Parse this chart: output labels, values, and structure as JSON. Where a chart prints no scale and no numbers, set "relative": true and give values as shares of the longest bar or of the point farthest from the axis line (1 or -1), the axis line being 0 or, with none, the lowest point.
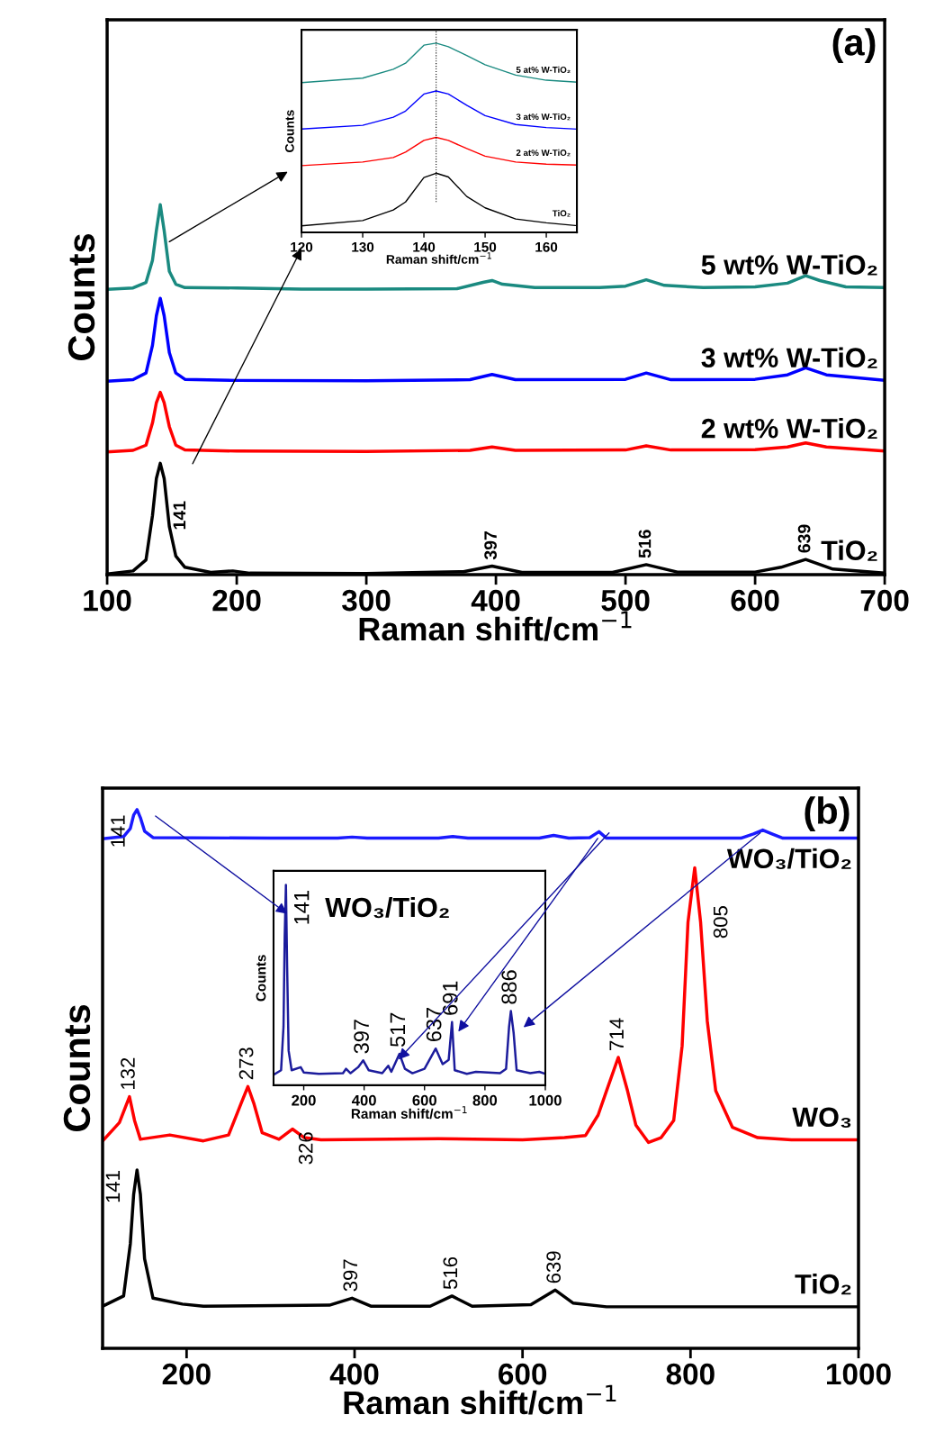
{
  "chart_data": [
    {
      "type": "line",
      "relative": true,
      "xlabel": "Raman shift/cm$^{−1}$",
      "ylabel": "Counts",
      "xlim": [
        100,
        700
      ],
      "xticks": [
        100,
        200,
        300,
        400,
        500,
        600,
        700
      ],
      "grid": false,
      "annotations": [
        "(a)",
        {
          "text": "141",
          "x": 141,
          "y": 0.301
        },
        {
          "text": "397",
          "x": 397,
          "y": 0.023
        },
        {
          "text": "516",
          "x": 516,
          "y": 0.027
        },
        {
          "text": "639",
          "x": 639,
          "y": 0.041
        }
      ],
      "series": [
        {
          "name": "5 wt% W-TiO₂",
          "color": "#1a8a80",
          "x": [
            100,
            120,
            130,
            135,
            138,
            141,
            144,
            148,
            153,
            160,
            200,
            250,
            300,
            370,
            390,
            397,
            405,
            430,
            480,
            500,
            516,
            530,
            560,
            600,
            625,
            639,
            650,
            670,
            700
          ],
          "values": [
            0.771,
            0.775,
            0.79,
            0.85,
            0.93,
            1.0,
            0.93,
            0.82,
            0.785,
            0.776,
            0.775,
            0.772,
            0.772,
            0.773,
            0.79,
            0.795,
            0.785,
            0.776,
            0.776,
            0.78,
            0.797,
            0.782,
            0.776,
            0.778,
            0.788,
            0.808,
            0.795,
            0.778,
            0.776
          ]
        },
        {
          "name": "3 wt% W-TiO₂",
          "color": "#0000ff",
          "x": [
            100,
            120,
            130,
            135,
            138,
            141,
            144,
            148,
            153,
            160,
            200,
            300,
            380,
            397,
            415,
            500,
            516,
            535,
            600,
            625,
            639,
            655,
            700
          ],
          "values": [
            0.523,
            0.527,
            0.545,
            0.62,
            0.7,
            0.747,
            0.7,
            0.6,
            0.545,
            0.528,
            0.525,
            0.524,
            0.527,
            0.541,
            0.527,
            0.528,
            0.545,
            0.527,
            0.528,
            0.54,
            0.559,
            0.54,
            0.525
          ]
        },
        {
          "name": "2 wt% W-TiO₂",
          "color": "#ff0000",
          "x": [
            100,
            120,
            130,
            135,
            138,
            141,
            144,
            148,
            153,
            160,
            200,
            300,
            380,
            397,
            415,
            500,
            516,
            535,
            600,
            625,
            639,
            655,
            700
          ],
          "values": [
            0.332,
            0.336,
            0.35,
            0.41,
            0.465,
            0.493,
            0.465,
            0.4,
            0.35,
            0.337,
            0.334,
            0.333,
            0.336,
            0.345,
            0.336,
            0.337,
            0.348,
            0.337,
            0.338,
            0.345,
            0.356,
            0.345,
            0.334
          ]
        },
        {
          "name": "TiO₂",
          "color": "#000000",
          "x": [
            100,
            120,
            130,
            135,
            138,
            141,
            144,
            148,
            153,
            160,
            180,
            197,
            210,
            300,
            375,
            397,
            420,
            490,
            516,
            540,
            600,
            620,
            639,
            660,
            700
          ],
          "values": [
            0.002,
            0.01,
            0.04,
            0.16,
            0.26,
            0.301,
            0.26,
            0.13,
            0.05,
            0.02,
            0.006,
            0.01,
            0.004,
            0.003,
            0.008,
            0.023,
            0.006,
            0.006,
            0.027,
            0.007,
            0.007,
            0.02,
            0.041,
            0.015,
            0.004
          ]
        }
      ]
    },
    {
      "type": "line",
      "relative": true,
      "xlabel": "Raman shift/cm$^{−1}$",
      "ylabel": "Counts",
      "xlim": [
        120,
        165
      ],
      "xticks": [
        120,
        130,
        140,
        150,
        160
      ],
      "grid": false,
      "ref_lines": [
        {
          "axis": "x",
          "value": 142,
          "color": "#000000",
          "line_style": "dotted"
        }
      ],
      "series": [
        {
          "name": "5 at% W-TiO₂",
          "color": "#1a8a80",
          "x": [
            120,
            130,
            135,
            137,
            140,
            142,
            144,
            147,
            150,
            155,
            160,
            165
          ],
          "values": [
            0.791,
            0.815,
            0.862,
            0.894,
            0.989,
            1.0,
            0.981,
            0.934,
            0.886,
            0.831,
            0.804,
            0.794
          ]
        },
        {
          "name": "3 at% W-TiO₂",
          "color": "#0000ff",
          "x": [
            120,
            130,
            135,
            137,
            140,
            142,
            144,
            147,
            150,
            155,
            160,
            165
          ],
          "values": [
            0.546,
            0.566,
            0.609,
            0.641,
            0.731,
            0.747,
            0.731,
            0.672,
            0.617,
            0.57,
            0.554,
            0.546
          ]
        },
        {
          "name": "2 at% W-TiO₂",
          "color": "#ff0000",
          "x": [
            120,
            130,
            135,
            137,
            140,
            142,
            144,
            147,
            150,
            155,
            160,
            165
          ],
          "values": [
            0.353,
            0.372,
            0.396,
            0.424,
            0.486,
            0.502,
            0.486,
            0.443,
            0.403,
            0.372,
            0.361,
            0.356
          ]
        },
        {
          "name": "TiO₂",
          "color": "#000000",
          "x": [
            120,
            130,
            135,
            137,
            140,
            142,
            144,
            147,
            150,
            155,
            160,
            165
          ],
          "values": [
            0.035,
            0.063,
            0.119,
            0.161,
            0.29,
            0.313,
            0.293,
            0.19,
            0.13,
            0.071,
            0.051,
            0.036
          ]
        }
      ]
    },
    {
      "type": "line",
      "relative": true,
      "xlabel": "Raman shift/cm$^{−1}$",
      "ylabel": "Counts",
      "xlim": [
        100,
        1000
      ],
      "xticks": [
        200,
        400,
        600,
        800,
        1000
      ],
      "grid": false,
      "annotations": [
        "(b)",
        {
          "text": "141",
          "x": 141,
          "y": 1.0
        },
        {
          "text": "132",
          "x": 132,
          "y": 0.467
        },
        {
          "text": "273",
          "x": 273,
          "y": 0.486
        },
        {
          "text": "326",
          "x": 326,
          "y": 0.407
        },
        {
          "text": "714",
          "x": 714,
          "y": 0.54
        },
        {
          "text": "805",
          "x": 805,
          "y": 0.892
        },
        {
          "text": "141",
          "x": 141,
          "y": 0.331
        },
        {
          "text": "397",
          "x": 397,
          "y": 0.093
        },
        {
          "text": "516",
          "x": 516,
          "y": 0.097
        },
        {
          "text": "639",
          "x": 639,
          "y": 0.108
        }
      ],
      "series": [
        {
          "name": "WO₃/TiO₂",
          "color": "#1a1aff",
          "x": [
            100,
            125,
            133,
            137,
            141,
            145,
            150,
            160,
            300,
            380,
            397,
            415,
            500,
            517,
            535,
            620,
            637,
            655,
            680,
            691,
            700,
            860,
            875,
            886,
            897,
            910,
            1000
          ],
          "values": [
            0.946,
            0.95,
            0.965,
            0.99,
            1.0,
            0.985,
            0.96,
            0.948,
            0.947,
            0.947,
            0.949,
            0.947,
            0.947,
            0.95,
            0.947,
            0.947,
            0.952,
            0.947,
            0.948,
            0.959,
            0.947,
            0.947,
            0.955,
            0.962,
            0.955,
            0.947,
            0.947
          ]
        },
        {
          "name": "WO₃",
          "color": "#ff0000",
          "x": [
            100,
            120,
            132,
            138,
            145,
            180,
            220,
            250,
            265,
            273,
            280,
            290,
            310,
            326,
            340,
            360,
            500,
            600,
            650,
            675,
            690,
            700,
            714,
            725,
            735,
            750,
            765,
            780,
            790,
            797,
            805,
            812,
            820,
            830,
            850,
            880,
            920,
            1000
          ],
          "values": [
            0.385,
            0.419,
            0.467,
            0.423,
            0.388,
            0.396,
            0.385,
            0.396,
            0.455,
            0.486,
            0.455,
            0.4,
            0.388,
            0.407,
            0.391,
            0.387,
            0.389,
            0.387,
            0.391,
            0.395,
            0.433,
            0.478,
            0.54,
            0.478,
            0.414,
            0.382,
            0.391,
            0.423,
            0.561,
            0.791,
            0.892,
            0.791,
            0.607,
            0.478,
            0.41,
            0.391,
            0.387,
            0.387
          ]
        },
        {
          "name": "TiO₂",
          "color": "#000000",
          "x": [
            100,
            125,
            133,
            137,
            141,
            145,
            150,
            160,
            195,
            220,
            370,
            397,
            420,
            490,
            516,
            540,
            610,
            639,
            660,
            700,
            1000
          ],
          "values": [
            0.078,
            0.097,
            0.194,
            0.286,
            0.331,
            0.286,
            0.166,
            0.093,
            0.082,
            0.078,
            0.08,
            0.093,
            0.078,
            0.078,
            0.097,
            0.078,
            0.081,
            0.108,
            0.084,
            0.077,
            0.077
          ]
        }
      ]
    },
    {
      "type": "line",
      "relative": true,
      "title": "WO₃/TiO₂",
      "xlabel": "Raman shift/cm$^{−1}$",
      "ylabel": "Counts",
      "xlim": [
        100,
        1000
      ],
      "xticks": [
        200,
        400,
        600,
        800,
        1000
      ],
      "grid": false,
      "annotations": [
        {
          "text": "141",
          "x": 141,
          "y": 1.0
        },
        {
          "text": "397",
          "x": 397,
          "y": 0.124
        },
        {
          "text": "517",
          "x": 517,
          "y": 0.157
        },
        {
          "text": "637",
          "x": 637,
          "y": 0.183
        },
        {
          "text": "691",
          "x": 691,
          "y": 0.315
        },
        {
          "text": "886",
          "x": 886,
          "y": 0.37
        }
      ],
      "series": [
        {
          "color": "#1c1c9c",
          "x": [
            100,
            125,
            133,
            137,
            141,
            145,
            150,
            160,
            190,
            200,
            250,
            330,
            340,
            355,
            380,
            397,
            415,
            460,
            480,
            490,
            517,
            535,
            560,
            600,
            637,
            660,
            680,
            691,
            700,
            740,
            770,
            850,
            870,
            880,
            886,
            895,
            905,
            950,
            980,
            1000
          ],
          "values": [
            0.052,
            0.075,
            0.292,
            0.742,
            1.0,
            0.592,
            0.172,
            0.075,
            0.09,
            0.064,
            0.057,
            0.06,
            0.082,
            0.06,
            0.09,
            0.124,
            0.075,
            0.06,
            0.097,
            0.067,
            0.157,
            0.082,
            0.06,
            0.082,
            0.183,
            0.105,
            0.127,
            0.315,
            0.075,
            0.057,
            0.067,
            0.06,
            0.082,
            0.292,
            0.37,
            0.262,
            0.075,
            0.06,
            0.067,
            0.057
          ]
        }
      ]
    }
  ]
}
